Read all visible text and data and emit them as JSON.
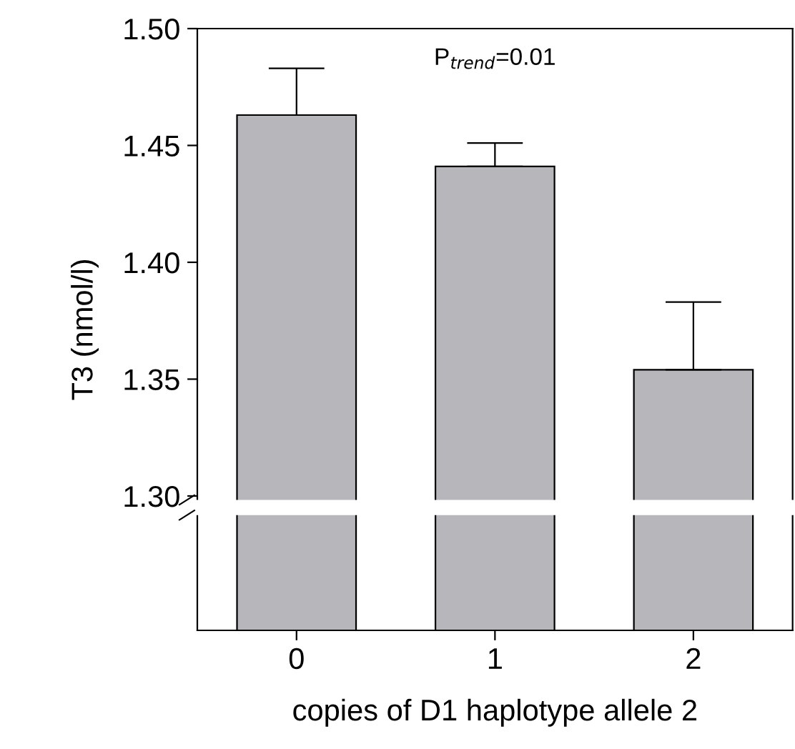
{
  "chart_data": {
    "type": "bar",
    "xlabel": "copies of D1 haplotype allele 2",
    "ylabel": "T3 (nmol/l)",
    "categories": [
      "0",
      "1",
      "2"
    ],
    "values": [
      1.463,
      1.441,
      1.354
    ],
    "color": "#b7b7bb",
    "errors": [
      [
        1.463,
        1.483
      ],
      [
        1.441,
        1.451
      ],
      [
        1.354,
        1.383
      ]
    ],
    "ylim": [
      1.2425,
      1.5
    ],
    "yticks": [
      {
        "value": 1.3,
        "label": "1.30"
      },
      {
        "value": 1.35,
        "label": "1.35"
      },
      {
        "value": 1.4,
        "label": "1.40"
      },
      {
        "value": 1.45,
        "label": "1.45"
      },
      {
        "value": 1.5,
        "label": "1.50"
      }
    ],
    "annotations": [
      "P$_{trend}$=0.01"
    ],
    "grid": false
  }
}
